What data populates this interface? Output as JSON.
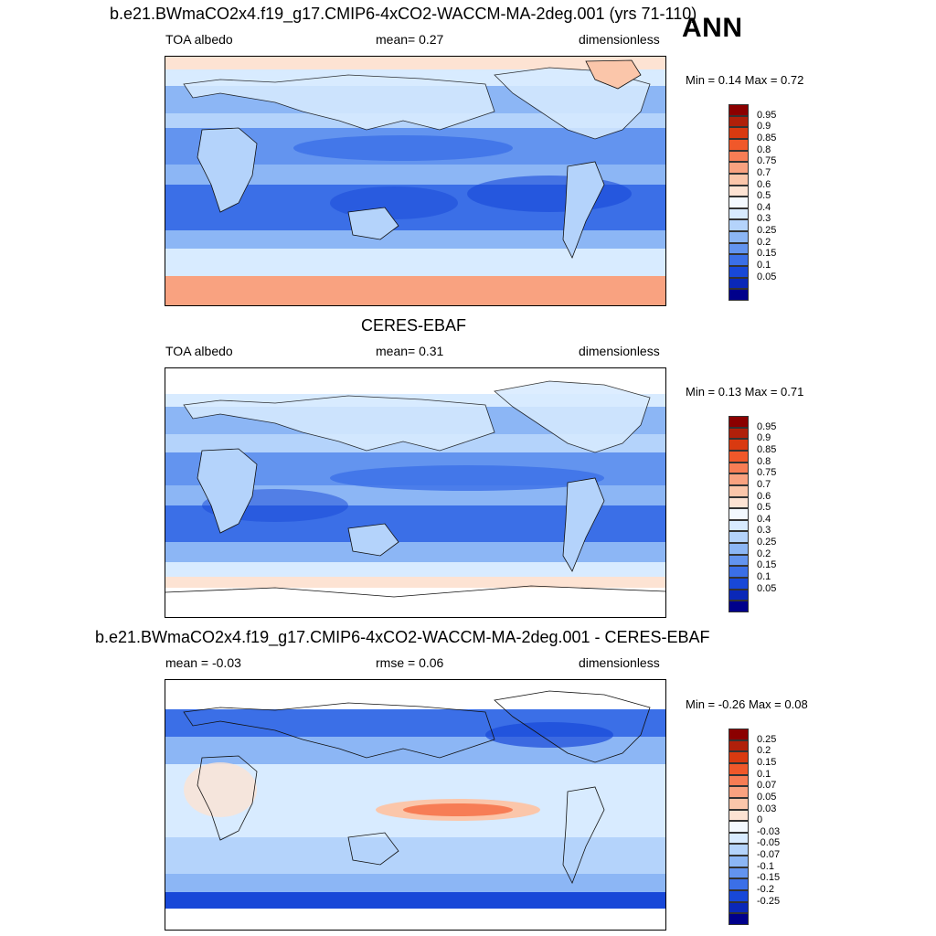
{
  "season": "ANN",
  "panels": [
    {
      "title": "b.e21.BWmaCO2x4.f19_g17.CMIP6-4xCO2-WACCM-MA-2deg.001 (yrs 71-110)",
      "left_text": "TOA albedo",
      "center_text": "mean=   0.27",
      "right_text": "dimensionless",
      "minmax": "Min =   0.14 Max =   0.72",
      "colorbar": {
        "labels": [
          "0.95",
          "0.9",
          "0.85",
          "0.8",
          "0.75",
          "0.7",
          "0.6",
          "0.5",
          "0.4",
          "0.3",
          "0.25",
          "0.2",
          "0.15",
          "0.1",
          "0.05"
        ],
        "colors": [
          "#8b0000",
          "#b0200a",
          "#d93a10",
          "#f0582a",
          "#f77d55",
          "#f9a280",
          "#fbc6aa",
          "#fde3d3",
          "#f4f9ff",
          "#d8ebff",
          "#b4d3fb",
          "#8cb6f5",
          "#6394ef",
          "#3b6fe7",
          "#1848d8",
          "#0a28b8",
          "#00008b"
        ]
      }
    },
    {
      "title": "CERES-EBAF",
      "left_text": "TOA albedo",
      "center_text": "mean=   0.31",
      "right_text": "dimensionless",
      "minmax": "Min =   0.13 Max =   0.71",
      "colorbar": {
        "labels": [
          "0.95",
          "0.9",
          "0.85",
          "0.8",
          "0.75",
          "0.7",
          "0.6",
          "0.5",
          "0.4",
          "0.3",
          "0.25",
          "0.2",
          "0.15",
          "0.1",
          "0.05"
        ],
        "colors": [
          "#8b0000",
          "#b0200a",
          "#d93a10",
          "#f0582a",
          "#f77d55",
          "#f9a280",
          "#fbc6aa",
          "#fde3d3",
          "#f4f9ff",
          "#d8ebff",
          "#b4d3fb",
          "#8cb6f5",
          "#6394ef",
          "#3b6fe7",
          "#1848d8",
          "#0a28b8",
          "#00008b"
        ]
      }
    },
    {
      "title": "b.e21.BWmaCO2x4.f19_g17.CMIP6-4xCO2-WACCM-MA-2deg.001 - CERES-EBAF",
      "left_text": "mean =  -0.03",
      "center_text": "rmse =   0.06",
      "right_text": "dimensionless",
      "minmax": "Min =  -0.26 Max =   0.08",
      "colorbar": {
        "labels": [
          "0.25",
          "0.2",
          "0.15",
          "0.1",
          "0.07",
          "0.05",
          "0.03",
          "0",
          "-0.03",
          "-0.05",
          "-0.07",
          "-0.1",
          "-0.15",
          "-0.2",
          "-0.25"
        ],
        "colors": [
          "#8b0000",
          "#b0200a",
          "#d93a10",
          "#f0582a",
          "#f77d55",
          "#f9a280",
          "#fbc6aa",
          "#fde3d3",
          "#f4f9ff",
          "#d8ebff",
          "#b4d3fb",
          "#8cb6f5",
          "#6394ef",
          "#3b6fe7",
          "#1848d8",
          "#0a28b8",
          "#00008b"
        ]
      }
    }
  ]
}
